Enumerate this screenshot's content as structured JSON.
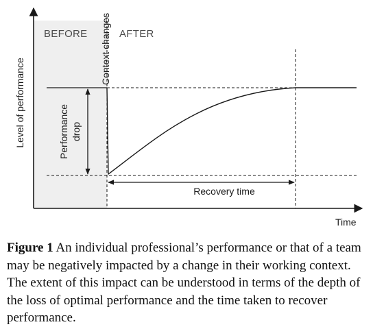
{
  "diagram": {
    "y_axis_label": "Level of performance",
    "x_axis_label": "Time",
    "region_before": "BEFORE",
    "region_after": "AFTER",
    "event_label": "Context changes",
    "drop_label_line1": "Performance",
    "drop_label_line2": "drop",
    "recovery_label": "Recovery time",
    "colors": {
      "before_region": "#efefef",
      "line": "#1a1a1a"
    }
  },
  "caption": {
    "label": "Figure 1",
    "text": " An individual professional’s performance or that of a team may be negatively impacted by a change in their working context. The extent of this impact can be understood in terms of the depth of the loss of optimal performance and the time taken to recover performance."
  }
}
